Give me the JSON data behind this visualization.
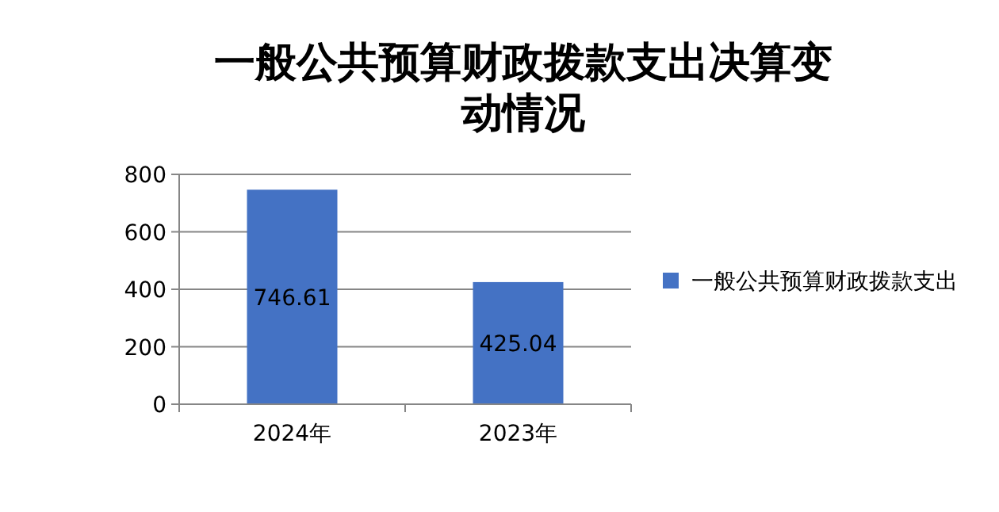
{
  "chart_data": {
    "type": "bar",
    "title": "一般公共预算财政拨款支出决算变动情况",
    "categories": [
      "2024年",
      "2023年"
    ],
    "series": [
      {
        "name": "一般公共预算财政拨款支出",
        "color": "#4472c4",
        "values": [
          746.61,
          425.04
        ]
      }
    ],
    "ylim": [
      0,
      800
    ],
    "yticks": [
      0,
      200,
      400,
      600,
      800
    ],
    "grid": "y",
    "legend": "right",
    "data_labels": true
  }
}
